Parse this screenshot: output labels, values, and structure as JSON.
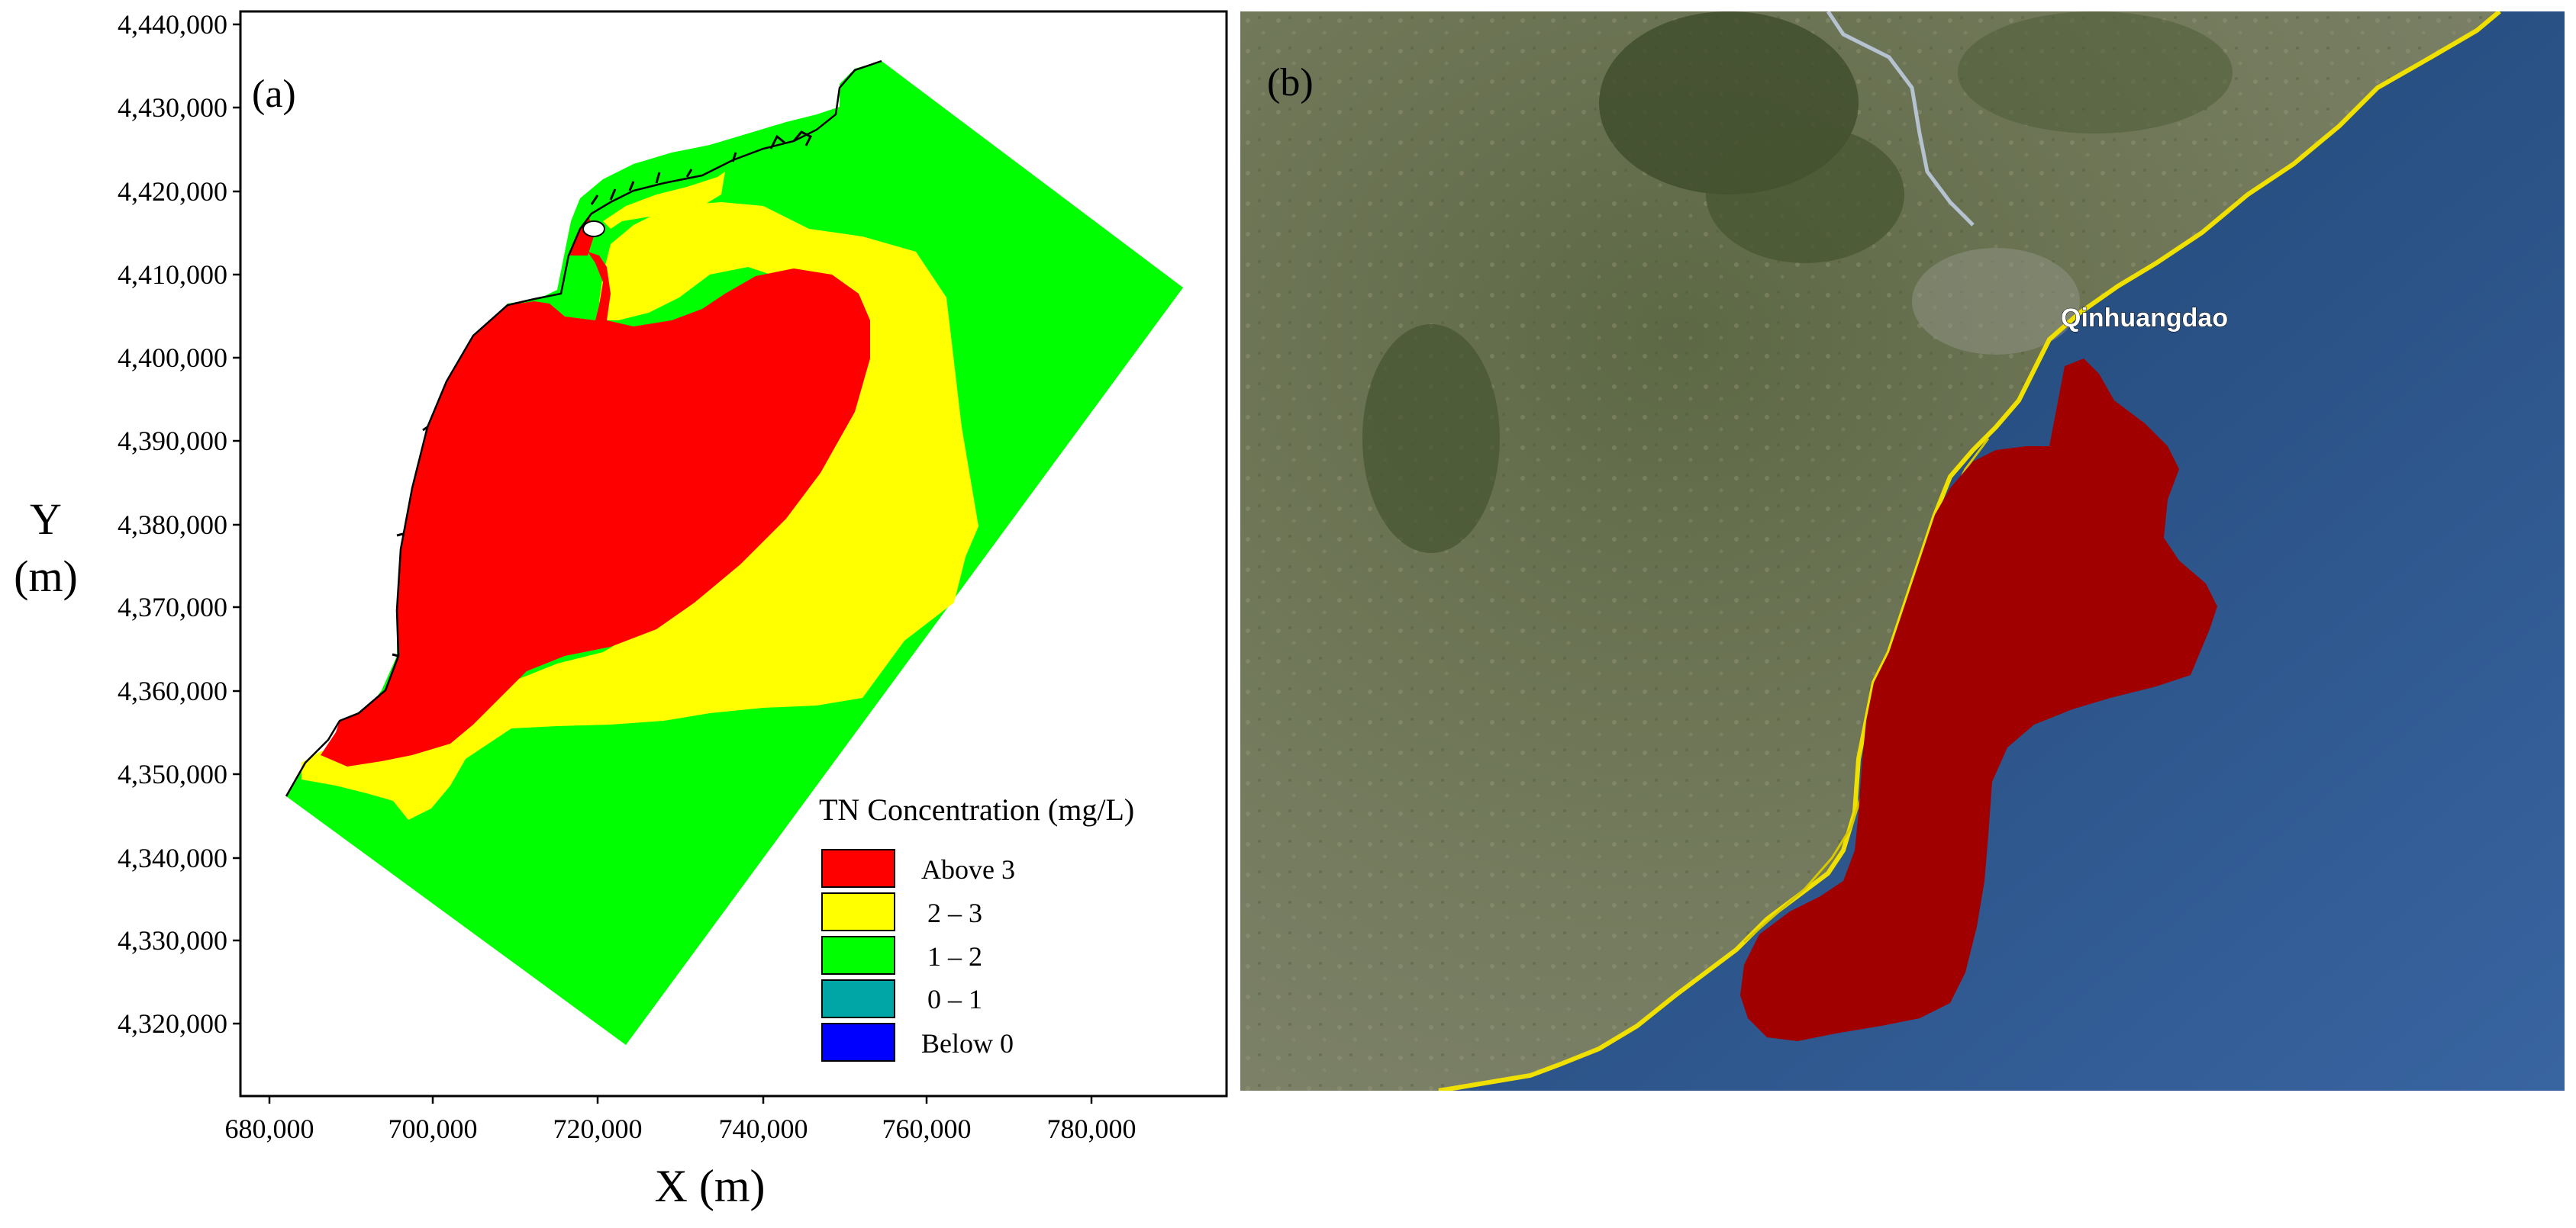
{
  "panel_a": {
    "label": "(a)",
    "y_axis_label_line1": "Y",
    "y_axis_label_line2": "(m)",
    "x_axis_label": "X (m)",
    "y_ticks": [
      "4,320,000",
      "4,330,000",
      "4,340,000",
      "4,350,000",
      "4,360,000",
      "4,370,000",
      "4,380,000",
      "4,390,000",
      "4,400,000",
      "4,410,000",
      "4,420,000",
      "4,430,000",
      "4,440,000"
    ],
    "x_ticks": [
      "680,000",
      "700,000",
      "720,000",
      "740,000",
      "760,000",
      "780,000"
    ],
    "legend": {
      "title": "TN Concentration (mg/L)",
      "items": [
        {
          "label": "Above 3",
          "color": "#ff0000"
        },
        {
          "label": "2 – 3",
          "color": "#ffff00"
        },
        {
          "label": "1 – 2",
          "color": "#00ff00"
        },
        {
          "label": "0 – 1",
          "color": "#00a6a6"
        },
        {
          "label": "Below 0",
          "color": "#0000ff"
        }
      ]
    }
  },
  "panel_b": {
    "label": "(b)",
    "place_label": "Qinhuangdao",
    "colors": {
      "land": "#66704f",
      "sea": "#2f5d94",
      "slick": "#a00000",
      "coastline": "#f0e000"
    }
  }
}
